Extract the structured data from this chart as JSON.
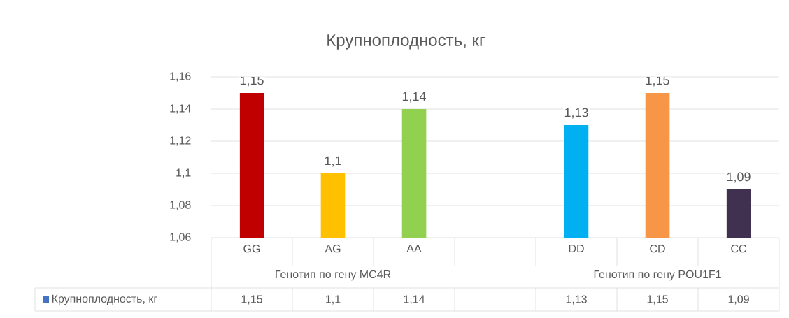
{
  "chart_data": {
    "type": "bar",
    "title": "Крупноплодность, кг",
    "categories": [
      "GG",
      "AG",
      "AA",
      null,
      "DD",
      "CD",
      "CC"
    ],
    "series": [
      {
        "name": "Крупноплодность, кг",
        "color": "#4472c4",
        "colors": [
          "#c00000",
          "#ffc000",
          "#92d050",
          "#ffffff",
          "#00b0f0",
          "#f79646",
          "#403151"
        ],
        "values": [
          1.15,
          1.1,
          1.14,
          null,
          1.13,
          1.15,
          1.09
        ],
        "value_labels": [
          "1,15",
          "1,1",
          "1,14",
          null,
          "1,13",
          "1,15",
          "1,09"
        ]
      }
    ],
    "ylim": [
      1.06,
      1.16
    ],
    "yticks": [
      {
        "value": 1.06,
        "label": "1,06"
      },
      {
        "value": 1.08,
        "label": "1,08"
      },
      {
        "value": 1.1,
        "label": "1,1"
      },
      {
        "value": 1.12,
        "label": "1,12"
      },
      {
        "value": 1.14,
        "label": "1,14"
      },
      {
        "value": 1.16,
        "label": "1,16"
      }
    ],
    "grid": "y",
    "legend": "bottom",
    "annotations": [
      "Генотип по гену MC4R",
      "Генотип по гену POU1F1"
    ]
  }
}
